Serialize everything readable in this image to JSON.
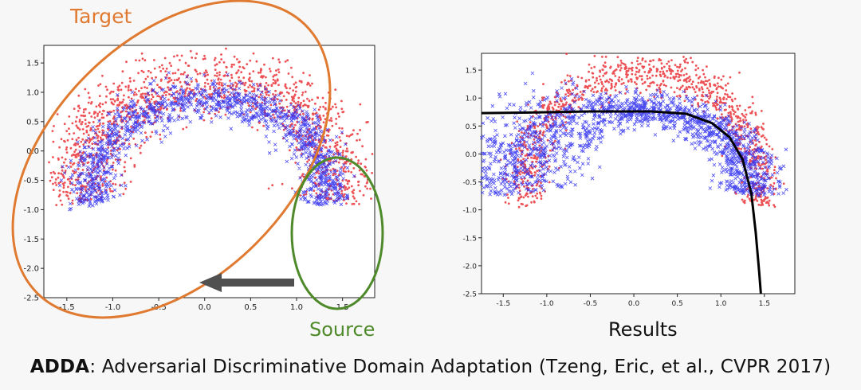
{
  "slide": {
    "target_label": "Target",
    "source_label": "Source",
    "results_label": "Results",
    "caption_bold": "ADDA",
    "caption_rest": ": Adversarial Discriminative Domain Adaptation (Tzeng, Eric, et al., CVPR 2017)"
  },
  "colors": {
    "target_points": "#e8262a",
    "source_points": "#2b2bf0",
    "target_ellipse": "#e07a30",
    "source_ellipse": "#4f8a2a",
    "arrow": "#505050",
    "boundary": "#000000"
  },
  "chart_data": [
    {
      "type": "scatter",
      "title": "",
      "xlim": [
        -1.75,
        1.85
      ],
      "ylim": [
        -2.5,
        1.8
      ],
      "x_ticks": [
        "-1.5",
        "-1.0",
        "-0.5",
        "0.0",
        "0.5",
        "1.0",
        "1.5"
      ],
      "y_ticks": [
        "1.5",
        "1.0",
        "0.5",
        "0.0",
        "-0.5",
        "-1.0",
        "-1.5",
        "-2.0",
        "-2.5"
      ],
      "series": [
        {
          "name": "target",
          "marker": "dot",
          "shape": "arch",
          "center": [
            0.05,
            -0.5
          ],
          "radius": [
            1.4,
            1.68
          ],
          "band_width": 0.32,
          "count": 1500
        },
        {
          "name": "source",
          "marker": "x",
          "shape": "arch",
          "center": [
            0.05,
            -0.6
          ],
          "radius": [
            1.27,
            1.5
          ],
          "band_width": 0.2,
          "count": 1300
        }
      ]
    },
    {
      "type": "scatter",
      "title": "",
      "xlim": [
        -1.75,
        1.85
      ],
      "ylim": [
        -2.5,
        1.8
      ],
      "x_ticks": [
        "-1.5",
        "-1.0",
        "-0.5",
        "0.0",
        "0.5",
        "1.0",
        "1.5"
      ],
      "y_ticks": [
        "1.5",
        "1.0",
        "0.5",
        "0.0",
        "-0.5",
        "-1.0",
        "-1.5",
        "-2.0",
        "-2.5"
      ],
      "series": [
        {
          "name": "target",
          "marker": "dot",
          "shape": "arch",
          "center": [
            0.1,
            -0.5
          ],
          "radius": [
            1.35,
            1.95
          ],
          "band_width": 0.22,
          "count": 1100
        },
        {
          "name": "source",
          "marker": "x",
          "shape": "arch",
          "center": [
            -0.05,
            -0.45
          ],
          "radius": [
            1.4,
            1.25
          ],
          "band_width": 0.22,
          "count": 1700,
          "left_extra_spread": true
        }
      ],
      "decision_boundary": [
        [
          -1.75,
          0.73
        ],
        [
          -1.2,
          0.74
        ],
        [
          -0.5,
          0.76
        ],
        [
          0.2,
          0.76
        ],
        [
          0.6,
          0.72
        ],
        [
          0.9,
          0.55
        ],
        [
          1.1,
          0.3
        ],
        [
          1.25,
          -0.1
        ],
        [
          1.35,
          -0.7
        ],
        [
          1.4,
          -1.4
        ],
        [
          1.44,
          -2.1
        ],
        [
          1.46,
          -2.5
        ]
      ]
    }
  ]
}
